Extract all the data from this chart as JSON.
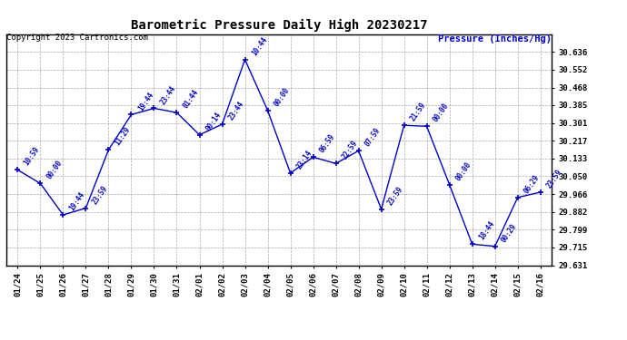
{
  "title": "Barometric Pressure Daily High 20230217",
  "copyright": "Copyright 2023 Cartronics.com",
  "ylabel": "Pressure (Inches/Hg)",
  "background_color": "#ffffff",
  "line_color": "#0000cc",
  "text_color": "#0000cc",
  "grid_color": "#aaaaaa",
  "dates": [
    "01/24",
    "01/25",
    "01/26",
    "01/27",
    "01/28",
    "01/29",
    "01/30",
    "01/31",
    "02/01",
    "02/02",
    "02/03",
    "02/04",
    "02/05",
    "02/06",
    "02/07",
    "02/08",
    "02/09",
    "02/10",
    "02/11",
    "02/12",
    "02/13",
    "02/14",
    "02/15",
    "02/16"
  ],
  "values": [
    30.08,
    30.016,
    29.868,
    29.9,
    30.175,
    30.34,
    30.37,
    30.35,
    30.245,
    30.295,
    30.6,
    30.36,
    30.065,
    30.14,
    30.11,
    30.17,
    29.895,
    30.29,
    30.285,
    30.01,
    29.73,
    29.72,
    29.95,
    29.975
  ],
  "time_labels": [
    "10:59",
    "00:00",
    "19:44",
    "23:59",
    "11:29",
    "19:44",
    "23:44",
    "01:44",
    "00:14",
    "23:44",
    "10:44",
    "00:00",
    "23:14",
    "06:59",
    "22:59",
    "07:59",
    "23:59",
    "21:59",
    "00:00",
    "00:00",
    "18:44",
    "00:29",
    "06:29",
    "23:59"
  ],
  "ylim_min": 29.631,
  "ylim_max": 30.72,
  "yticks": [
    29.631,
    29.715,
    29.799,
    29.882,
    29.966,
    30.05,
    30.133,
    30.217,
    30.301,
    30.385,
    30.468,
    30.552,
    30.636
  ]
}
